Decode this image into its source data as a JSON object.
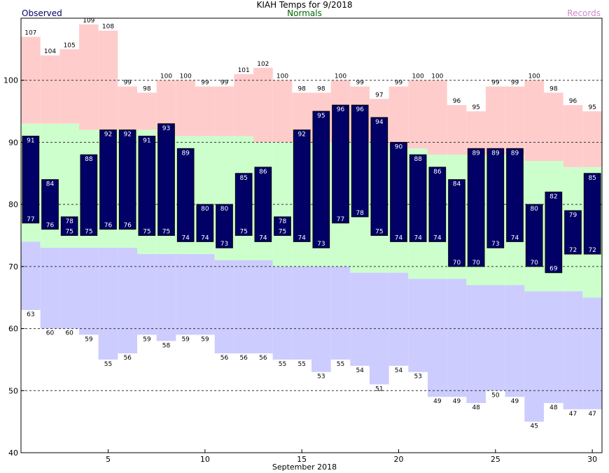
{
  "title": "KIAH Temps for 9/2018",
  "legend": {
    "observed": "Observed",
    "normals": "Normals",
    "records": "Records"
  },
  "colors": {
    "observed": "#000066",
    "normals_band": "#ccffcc",
    "record_high_band": "#ffcccc",
    "record_low_band": "#ccccff",
    "normals_text": "#006600",
    "records_text": "#cc88cc"
  },
  "chart_data": {
    "type": "bar",
    "title": "KIAH Temps for 9/2018",
    "xlabel": "September 2018",
    "ylabel": "",
    "ylim": [
      40,
      110
    ],
    "xlim": [
      0.5,
      30.5
    ],
    "x_ticks": [
      5,
      10,
      15,
      20,
      25,
      30
    ],
    "y_ticks": [
      40,
      50,
      60,
      70,
      80,
      90,
      100
    ],
    "grid": "dashed horizontal at 50, 60, 70, 80, 90, 100",
    "days": [
      1,
      2,
      3,
      4,
      5,
      6,
      7,
      8,
      9,
      10,
      11,
      12,
      13,
      14,
      15,
      16,
      17,
      18,
      19,
      20,
      21,
      22,
      23,
      24,
      25,
      26,
      27,
      28,
      29,
      30
    ],
    "observed_high": [
      91,
      84,
      78,
      88,
      92,
      92,
      91,
      93,
      89,
      80,
      80,
      85,
      86,
      78,
      92,
      95,
      96,
      96,
      94,
      90,
      88,
      86,
      84,
      89,
      89,
      89,
      80,
      82,
      79,
      85
    ],
    "observed_low": [
      77,
      76,
      75,
      75,
      76,
      76,
      75,
      75,
      74,
      74,
      73,
      75,
      74,
      75,
      74,
      73,
      77,
      78,
      75,
      74,
      74,
      74,
      70,
      70,
      73,
      74,
      70,
      69,
      72,
      72
    ],
    "record_high": [
      107,
      104,
      105,
      109,
      108,
      99,
      98,
      100,
      100,
      99,
      99,
      101,
      102,
      100,
      98,
      98,
      100,
      99,
      97,
      99,
      100,
      100,
      96,
      95,
      99,
      99,
      100,
      98,
      96,
      95
    ],
    "record_low": [
      63,
      60,
      60,
      59,
      55,
      56,
      59,
      58,
      59,
      59,
      56,
      56,
      56,
      55,
      55,
      53,
      55,
      54,
      51,
      54,
      53,
      49,
      49,
      48,
      50,
      49,
      45,
      48,
      47,
      47
    ],
    "normal_high": [
      93,
      93,
      93,
      92,
      92,
      92,
      92,
      91,
      91,
      91,
      91,
      91,
      90,
      90,
      90,
      90,
      90,
      90,
      90,
      89,
      89,
      88,
      88,
      88,
      88,
      88,
      87,
      87,
      86,
      86
    ],
    "normal_low": [
      74,
      73,
      73,
      73,
      73,
      73,
      72,
      72,
      72,
      72,
      71,
      71,
      71,
      70,
      70,
      70,
      70,
      69,
      69,
      69,
      68,
      68,
      68,
      67,
      67,
      67,
      66,
      66,
      66,
      65
    ]
  }
}
